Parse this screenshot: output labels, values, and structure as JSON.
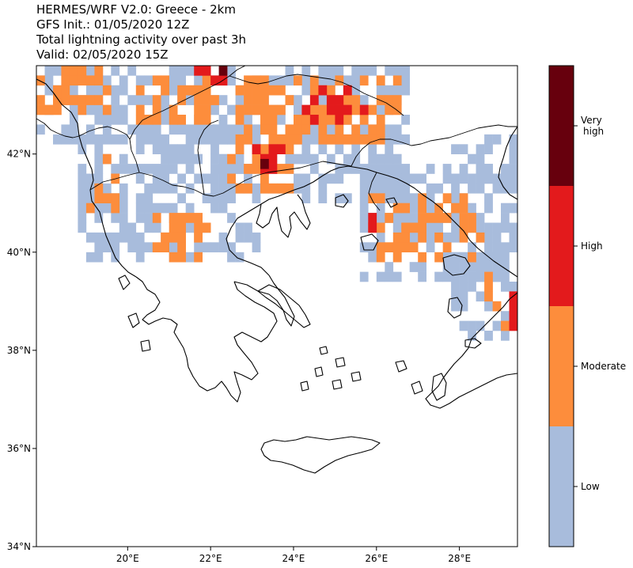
{
  "title_lines": [
    "HERMES/WRF V2.0: Greece - 2km",
    "GFS Init.: 01/05/2020 12Z",
    "Total lightning activity over past 3h",
    "Valid: 02/05/2020 15Z"
  ],
  "map": {
    "lon_range": [
      17.8,
      29.4
    ],
    "lat_range": [
      34.0,
      43.8
    ],
    "x_ticks": [
      {
        "value": 20,
        "label": "20°E"
      },
      {
        "value": 22,
        "label": "22°E"
      },
      {
        "value": 24,
        "label": "24°E"
      },
      {
        "value": 26,
        "label": "26°E"
      },
      {
        "value": 28,
        "label": "28°E"
      }
    ],
    "y_ticks": [
      {
        "value": 34,
        "label": "34°N"
      },
      {
        "value": 36,
        "label": "36°N"
      },
      {
        "value": 38,
        "label": "38°N"
      },
      {
        "value": 40,
        "label": "40°N"
      },
      {
        "value": 42,
        "label": "42°N"
      }
    ],
    "coastline_color": "#000000"
  },
  "legend": {
    "categories": [
      {
        "label": "Low",
        "color": "#a8bcdc"
      },
      {
        "label": "Moderate",
        "color": "#fd8d3c"
      },
      {
        "label": "High",
        "color": "#e31a1c"
      },
      {
        "label": "Very\nhigh",
        "color": "#67000d"
      }
    ]
  },
  "lightning_regions": [
    {
      "level": 0,
      "lon": [
        17.8,
        26.8
      ],
      "lat": [
        42.2,
        43.8
      ],
      "density": 0.62
    },
    {
      "level": 0,
      "lon": [
        18.8,
        23.2
      ],
      "lat": [
        39.8,
        42.2
      ],
      "density": 0.55
    },
    {
      "level": 0,
      "lon": [
        22.0,
        26.6
      ],
      "lat": [
        41.0,
        42.6
      ],
      "density": 0.5
    },
    {
      "level": 0,
      "lon": [
        25.6,
        29.4
      ],
      "lat": [
        39.4,
        41.8
      ],
      "density": 0.6
    },
    {
      "level": 0,
      "lon": [
        27.8,
        29.4
      ],
      "lat": [
        38.2,
        40.0
      ],
      "density": 0.45
    },
    {
      "level": 0,
      "lon": [
        27.6,
        29.4
      ],
      "lat": [
        41.4,
        42.4
      ],
      "density": 0.35
    },
    {
      "level": 1,
      "lon": [
        17.8,
        19.6
      ],
      "lat": [
        42.8,
        43.8
      ],
      "density": 0.55
    },
    {
      "level": 1,
      "lon": [
        20.2,
        22.2
      ],
      "lat": [
        42.6,
        43.6
      ],
      "density": 0.55
    },
    {
      "level": 1,
      "lon": [
        22.6,
        26.6
      ],
      "lat": [
        42.2,
        43.6
      ],
      "density": 0.55
    },
    {
      "level": 1,
      "lon": [
        19.0,
        19.8
      ],
      "lat": [
        40.8,
        42.0
      ],
      "density": 0.5
    },
    {
      "level": 1,
      "lon": [
        20.6,
        22.2
      ],
      "lat": [
        39.8,
        40.8
      ],
      "density": 0.55
    },
    {
      "level": 1,
      "lon": [
        22.4,
        24.0
      ],
      "lat": [
        41.2,
        42.2
      ],
      "density": 0.45
    },
    {
      "level": 1,
      "lon": [
        25.8,
        28.6
      ],
      "lat": [
        39.8,
        41.2
      ],
      "density": 0.35
    },
    {
      "level": 1,
      "lon": [
        28.6,
        29.4
      ],
      "lat": [
        38.4,
        39.6
      ],
      "density": 0.4
    },
    {
      "level": 2,
      "lon": [
        24.0,
        25.8
      ],
      "lat": [
        42.6,
        43.4
      ],
      "density": 0.3
    },
    {
      "level": 2,
      "lon": [
        23.0,
        23.8
      ],
      "lat": [
        41.6,
        42.2
      ],
      "density": 0.45
    },
    {
      "level": 2,
      "lon": [
        25.8,
        26.2
      ],
      "lat": [
        40.4,
        40.8
      ],
      "density": 0.5
    },
    {
      "level": 2,
      "lon": [
        21.6,
        22.4
      ],
      "lat": [
        43.4,
        43.8
      ],
      "density": 0.4
    },
    {
      "level": 2,
      "lon": [
        29.2,
        29.4
      ],
      "lat": [
        38.4,
        39.6
      ],
      "density": 0.7
    },
    {
      "level": 3,
      "lon": [
        23.2,
        23.6
      ],
      "lat": [
        41.7,
        41.9
      ],
      "density": 0.8
    },
    {
      "level": 3,
      "lon": [
        22.2,
        22.4
      ],
      "lat": [
        43.6,
        43.8
      ],
      "density": 0.9
    }
  ]
}
